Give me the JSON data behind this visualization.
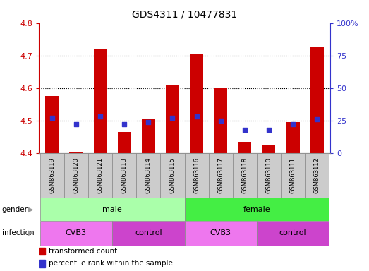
{
  "title": "GDS4311 / 10477831",
  "samples": [
    "GSM863119",
    "GSM863120",
    "GSM863121",
    "GSM863113",
    "GSM863114",
    "GSM863115",
    "GSM863116",
    "GSM863117",
    "GSM863118",
    "GSM863110",
    "GSM863111",
    "GSM863112"
  ],
  "bar_values": [
    4.575,
    4.405,
    4.72,
    4.465,
    4.505,
    4.61,
    4.705,
    4.6,
    4.435,
    4.425,
    4.495,
    4.725
  ],
  "bar_base": 4.4,
  "percentile_right": [
    27,
    22,
    28,
    22,
    24,
    27,
    28,
    25,
    18,
    18,
    22,
    26
  ],
  "ylim_left": [
    4.4,
    4.8
  ],
  "ylim_right": [
    0,
    100
  ],
  "yticks_left": [
    4.4,
    4.5,
    4.6,
    4.7,
    4.8
  ],
  "yticks_right": [
    0,
    25,
    50,
    75,
    100
  ],
  "ytick_labels_right": [
    "0",
    "25",
    "50",
    "75",
    "100%"
  ],
  "bar_color": "#cc0000",
  "dot_color": "#3333cc",
  "gender_groups": [
    {
      "label": "male",
      "start": 0,
      "end": 6,
      "color": "#aaffaa"
    },
    {
      "label": "female",
      "start": 6,
      "end": 12,
      "color": "#44ee44"
    }
  ],
  "infection_groups": [
    {
      "label": "CVB3",
      "start": 0,
      "end": 3,
      "color": "#ee77ee"
    },
    {
      "label": "control",
      "start": 3,
      "end": 6,
      "color": "#cc44cc"
    },
    {
      "label": "CVB3",
      "start": 6,
      "end": 9,
      "color": "#ee77ee"
    },
    {
      "label": "control",
      "start": 9,
      "end": 12,
      "color": "#cc44cc"
    }
  ],
  "legend_items": [
    {
      "label": "transformed count",
      "color": "#cc0000"
    },
    {
      "label": "percentile rank within the sample",
      "color": "#3333cc"
    }
  ],
  "tick_color_left": "#cc0000",
  "tick_color_right": "#3333cc",
  "sample_bg_color": "#cccccc",
  "border_color": "#888888"
}
